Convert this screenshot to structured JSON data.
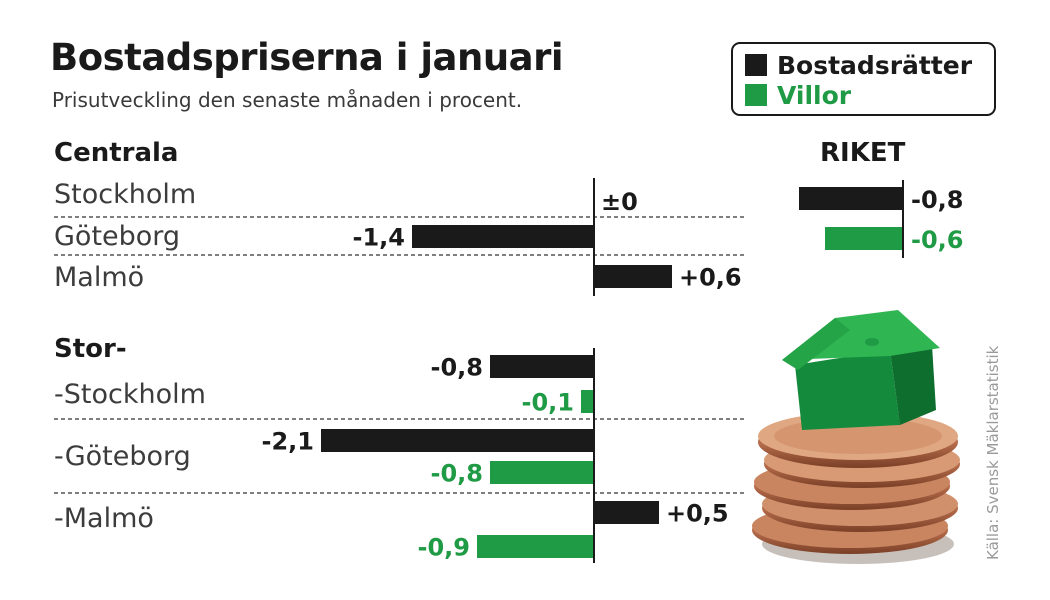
{
  "title": "Bostadspriserna i januari",
  "subtitle": "Prisutveckling den senaste månaden i procent.",
  "source": "Källa: Svensk Mäklarstatistik",
  "legend": {
    "items": [
      {
        "label": "Bostadsrätter",
        "color": "#1a1a1a"
      },
      {
        "label": "Villor",
        "color": "#1f9a45"
      }
    ]
  },
  "sections": {
    "centrala": "Centrala",
    "stor": "Stor-",
    "riket": "RIKET"
  },
  "cities": {
    "centrala": [
      "Stockholm",
      "Göteborg",
      "Malmö"
    ],
    "stor": [
      "-Stockholm",
      "-Göteborg",
      "-Malmö"
    ]
  },
  "chart_data": [
    {
      "type": "bar",
      "group": "Centrala",
      "categories": [
        "Stockholm",
        "Göteborg",
        "Malmö"
      ],
      "series": [
        {
          "name": "Bostadsrätter",
          "values": [
            0,
            -1.4,
            0.6
          ],
          "labels": [
            "±0",
            "-1,4",
            "+0,6"
          ]
        }
      ]
    },
    {
      "type": "bar",
      "group": "Stor-",
      "categories": [
        "-Stockholm",
        "-Göteborg",
        "-Malmö"
      ],
      "series": [
        {
          "name": "Bostadsrätter",
          "values": [
            -0.8,
            -2.1,
            0.5
          ],
          "labels": [
            "-0,8",
            "-2,1",
            "+0,5"
          ]
        },
        {
          "name": "Villor",
          "values": [
            -0.1,
            -0.8,
            -0.9
          ],
          "labels": [
            "-0,1",
            "-0,8",
            "-0,9"
          ]
        }
      ]
    },
    {
      "type": "bar",
      "group": "RIKET",
      "categories": [
        "RIKET"
      ],
      "series": [
        {
          "name": "Bostadsrätter",
          "values": [
            -0.8
          ],
          "labels": [
            "-0,8"
          ]
        },
        {
          "name": "Villor",
          "values": [
            -0.6
          ],
          "labels": [
            "-0,6"
          ]
        }
      ]
    }
  ],
  "colors": {
    "dark": "#1a1a1a",
    "green": "#1f9a45"
  },
  "image": {
    "icon": "house-on-coins-icon"
  }
}
